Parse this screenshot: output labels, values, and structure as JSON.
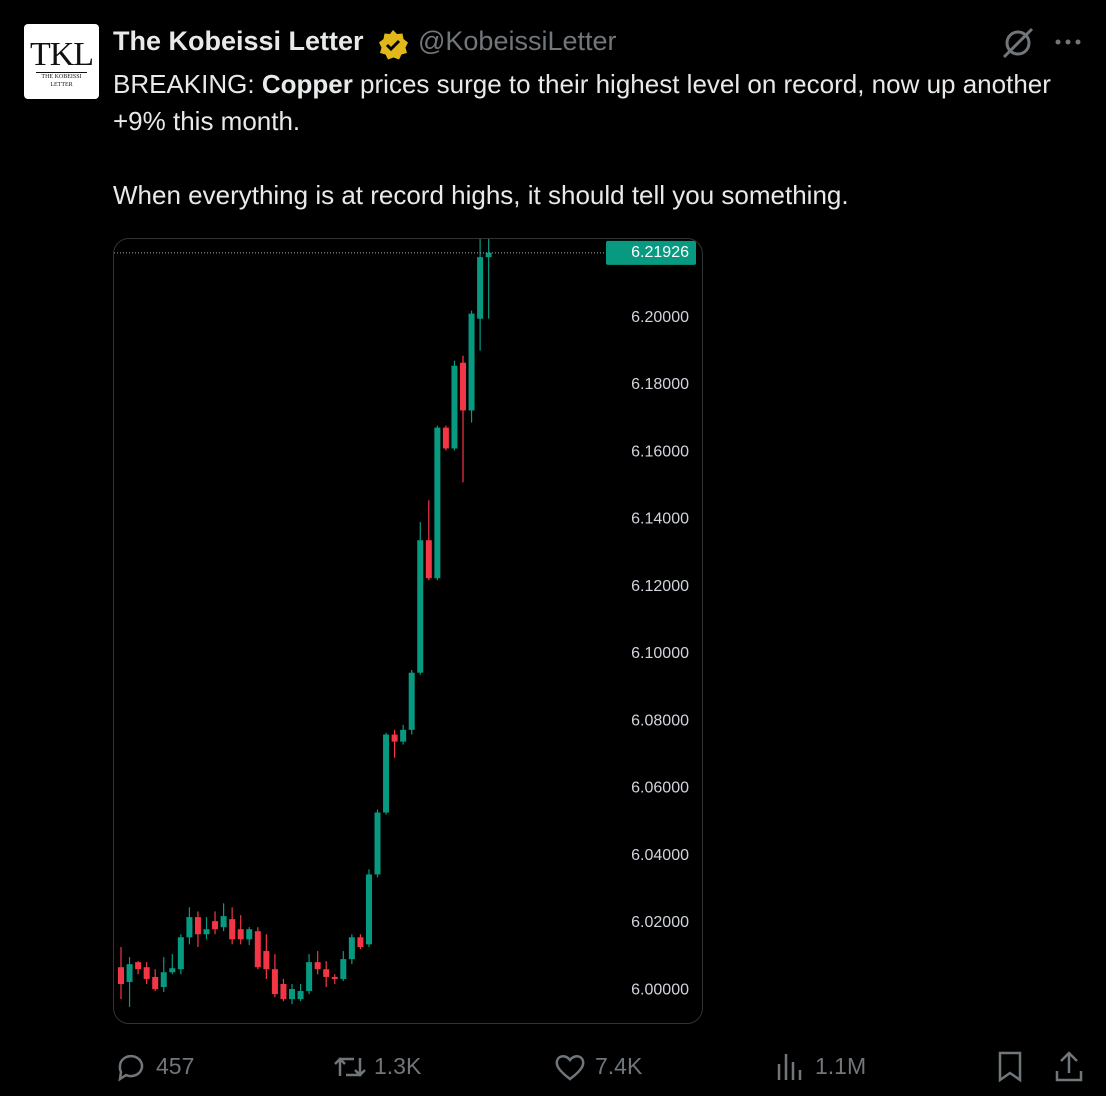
{
  "tweet": {
    "avatar": {
      "text": "TKL",
      "subtext": "THE KOBEISSI LETTER"
    },
    "name": "The Kobeissi Letter",
    "handle": "@KobeissiLetter",
    "paragraphs": [
      [
        "BREAKING: ",
        "Copper",
        " prices surge to their highest level on record, now up another +9% this month."
      ],
      [
        "When everything is at record highs, it should tell you something."
      ]
    ],
    "actions": {
      "replies": "457",
      "reposts": "1.3K",
      "likes": "7.4K",
      "views": "1.1M"
    }
  },
  "chart_data": {
    "type": "candlestick",
    "up_color": "#089981",
    "down_color": "#f23645",
    "open": [
      6.0068,
      6.0024,
      6.0083,
      6.0068,
      6.0039,
      6.0009,
      6.0053,
      6.0062,
      6.0157,
      6.0217,
      6.0166,
      6.0205,
      6.0187,
      6.0211,
      6.0181,
      6.0151,
      6.0175,
      6.0116,
      6.0062,
      6.0018,
      5.9973,
      5.9973,
      5.9997,
      6.0083,
      6.0062,
      6.0039,
      6.0033,
      6.0092,
      6.0157,
      6.0136,
      6.0344,
      6.0528,
      6.076,
      6.0739,
      6.0774,
      6.0944,
      6.1338,
      6.1225,
      6.1673,
      6.1611,
      6.1866,
      6.1724,
      6.1997,
      6.218
    ],
    "high": [
      6.0128,
      6.0098,
      6.0086,
      6.0083,
      6.0062,
      6.0098,
      6.0107,
      6.0166,
      6.0246,
      6.0234,
      6.0217,
      6.0234,
      6.0258,
      6.0246,
      6.0223,
      6.0187,
      6.0187,
      6.0166,
      6.0107,
      6.0033,
      6.0018,
      6.0018,
      6.0107,
      6.0116,
      6.0086,
      6.0047,
      6.0116,
      6.0166,
      6.0166,
      6.0359,
      6.0537,
      6.0765,
      6.0774,
      6.0789,
      6.0952,
      6.1392,
      6.1457,
      6.1679,
      6.1679,
      6.1872,
      6.1887,
      6.2021,
      6.2234,
      6.2234
    ],
    "low": [
      5.9973,
      5.995,
      6.0047,
      6.0018,
      5.9997,
      5.9994,
      6.0047,
      6.0047,
      6.0136,
      6.0128,
      6.0151,
      6.0166,
      6.0175,
      6.0136,
      6.0136,
      6.0134,
      6.0062,
      6.0033,
      5.9979,
      5.9967,
      5.9958,
      5.9967,
      5.9988,
      6.0047,
      6.0009,
      6.0018,
      6.0027,
      6.0077,
      6.0122,
      6.0128,
      6.0335,
      6.0522,
      6.0691,
      6.073,
      6.076,
      6.0938,
      6.1219,
      6.1219,
      6.1605,
      6.1605,
      6.151,
      6.1688,
      6.1902,
      6.1997
    ],
    "close": [
      6.0018,
      6.0077,
      6.0062,
      6.0033,
      6.0003,
      6.0053,
      6.0065,
      6.0157,
      6.0217,
      6.0166,
      6.0181,
      6.0181,
      6.022,
      6.0151,
      6.0151,
      6.0181,
      6.0068,
      6.0062,
      5.9988,
      5.9973,
      6.0003,
      5.9997,
      6.0083,
      6.0062,
      6.0039,
      6.0033,
      6.0092,
      6.0157,
      6.0128,
      6.0344,
      6.0528,
      6.076,
      6.0739,
      6.0774,
      6.0944,
      6.1338,
      6.1225,
      6.1673,
      6.1611,
      6.1857,
      6.1724,
      6.2012,
      6.218,
      6.2193
    ],
    "ylim": [
      5.9902,
      6.2234
    ],
    "yticks": [
      {
        "value": 6.0,
        "label": "6.00000"
      },
      {
        "value": 6.02,
        "label": "6.02000"
      },
      {
        "value": 6.04,
        "label": "6.04000"
      },
      {
        "value": 6.06,
        "label": "6.06000"
      },
      {
        "value": 6.08,
        "label": "6.08000"
      },
      {
        "value": 6.1,
        "label": "6.10000"
      },
      {
        "value": 6.12,
        "label": "6.12000"
      },
      {
        "value": 6.14,
        "label": "6.14000"
      },
      {
        "value": 6.16,
        "label": "6.16000"
      },
      {
        "value": 6.18,
        "label": "6.18000"
      },
      {
        "value": 6.2,
        "label": "6.20000"
      }
    ],
    "last_price": 6.21926
  }
}
